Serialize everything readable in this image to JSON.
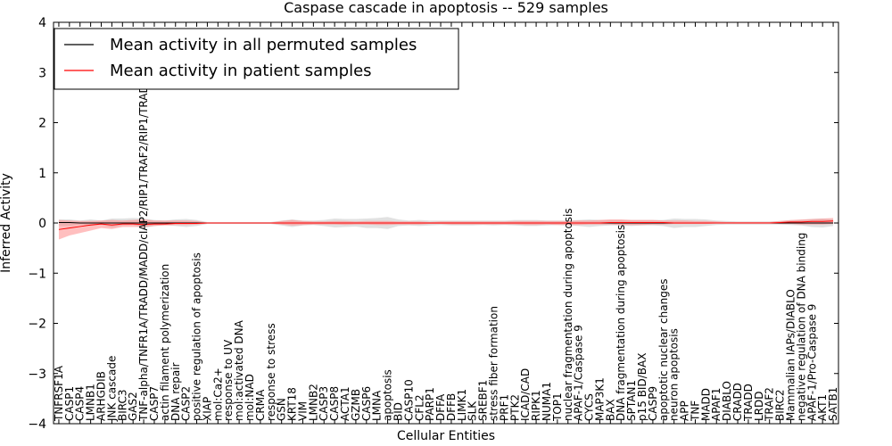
{
  "chart_data": {
    "type": "line",
    "title": "Caspase cascade in apoptosis -- 529 samples",
    "xlabel": "Cellular Entities",
    "ylabel": "Inferred Activity",
    "ylim": [
      -4,
      4
    ],
    "yticks": [
      4,
      3,
      2,
      1,
      0,
      -1,
      -2,
      -3,
      -4
    ],
    "ytick_labels": [
      "4",
      "3",
      "2",
      "1",
      "0",
      "−1",
      "−2",
      "−3",
      "−4"
    ],
    "legend_position": "top-left",
    "categories": [
      "TNFRSF1A",
      "CASP1",
      "CASP4",
      "LMNB1",
      "ARHGDIB",
      "JNK cascade",
      "BIRC3",
      "GAS2",
      "TNF-alpha/TNFR1A/TRADD/MADD/cIAP2/RIP1/TRAF2/RIP1/TRADD",
      "CASP7",
      "actin filament polymerization",
      "DNA repair",
      "CASP2",
      "positive regulation of apoptosis",
      "XIAP",
      "mol:Ca2+",
      "response to UV",
      "mol:activated DNA",
      "mol:NAD",
      "CRMA",
      "response to stress",
      "GSN",
      "KRT18",
      "VIM",
      "LMNB2",
      "CASP3",
      "CASP8",
      "ACTA1",
      "GZMB",
      "CASP6",
      "LMNA",
      "apoptosis",
      "BID",
      "CASP10",
      "CFL2",
      "PARP1",
      "DFFA",
      "DFFB",
      "LIMK1",
      "SLK",
      "SREBF1",
      "stress fiber formation",
      "PRF1",
      "PTK2",
      "ICAD/CAD",
      "RIPK1",
      "NUMA1",
      "TOP1",
      "nuclear fragmentation during apoptosis",
      "APAF-1/Caspase 9",
      "CYCS",
      "MAP3K1",
      "BAX",
      "DNA fragmentation during apoptosis",
      "SPTAN1",
      "p15 BID/BAX",
      "CASP9",
      "apoptotic nuclear changes",
      "neuron apoptosis",
      "APP",
      "TNF",
      "MADD",
      "APAF1",
      "DIABLO",
      "CRADD",
      "TRADD",
      "LRDD",
      "TRAF2",
      "BIRC2",
      "Mammalian IAPs/DIABLO",
      "negative regulation of DNA binding",
      "APAF-1/Pro-Caspase 9",
      "AKT1",
      "SATB1"
    ],
    "series": [
      {
        "name": "Mean activity in all permuted samples",
        "color": "#000000",
        "band_color": "#c8c8c8",
        "values": [
          0.01,
          0.01,
          0.0,
          0.0,
          0.0,
          0.0,
          0.0,
          0.0,
          0.0,
          0.0,
          0.0,
          0.0,
          0.0,
          0.0,
          0.0,
          0.0,
          0.0,
          0.0,
          0.0,
          0.0,
          0.0,
          0.0,
          0.0,
          0.0,
          0.0,
          0.0,
          0.0,
          0.0,
          0.0,
          0.0,
          0.0,
          0.0,
          0.0,
          0.0,
          0.0,
          0.0,
          0.0,
          0.0,
          0.0,
          0.0,
          0.0,
          0.0,
          0.0,
          0.0,
          0.0,
          0.0,
          0.0,
          0.0,
          0.0,
          0.0,
          0.0,
          0.0,
          0.0,
          0.0,
          0.0,
          0.0,
          0.0,
          0.0,
          0.0,
          0.0,
          0.0,
          0.0,
          0.0,
          0.0,
          0.0,
          0.0,
          0.0,
          0.0,
          0.0,
          0.0,
          0.0,
          0.0,
          0.0,
          0.0
        ],
        "lower": [
          -0.06,
          -0.06,
          -0.03,
          -0.06,
          -0.03,
          -0.09,
          -0.05,
          -0.04,
          -0.1,
          -0.06,
          -0.04,
          -0.06,
          -0.08,
          -0.06,
          -0.02,
          -0.02,
          -0.02,
          -0.02,
          -0.02,
          -0.02,
          -0.02,
          -0.05,
          -0.08,
          -0.05,
          -0.04,
          -0.06,
          -0.09,
          -0.08,
          -0.07,
          -0.1,
          -0.1,
          -0.12,
          -0.06,
          -0.05,
          -0.06,
          -0.05,
          -0.04,
          -0.05,
          -0.05,
          -0.05,
          -0.04,
          -0.05,
          -0.04,
          -0.05,
          -0.06,
          -0.06,
          -0.05,
          -0.04,
          -0.05,
          -0.06,
          -0.08,
          -0.06,
          -0.05,
          -0.05,
          -0.06,
          -0.05,
          -0.05,
          -0.06,
          -0.1,
          -0.08,
          -0.08,
          -0.06,
          -0.04,
          -0.03,
          -0.03,
          -0.03,
          -0.03,
          -0.03,
          -0.03,
          -0.04,
          -0.05,
          -0.08,
          -0.09,
          -0.06
        ],
        "upper": [
          0.07,
          0.07,
          0.05,
          0.07,
          0.05,
          0.09,
          0.09,
          0.1,
          0.09,
          0.06,
          0.05,
          0.07,
          0.08,
          0.06,
          0.02,
          0.02,
          0.02,
          0.02,
          0.02,
          0.02,
          0.02,
          0.05,
          0.07,
          0.05,
          0.05,
          0.06,
          0.09,
          0.08,
          0.08,
          0.09,
          0.1,
          0.12,
          0.07,
          0.05,
          0.06,
          0.05,
          0.05,
          0.05,
          0.05,
          0.05,
          0.05,
          0.05,
          0.05,
          0.06,
          0.06,
          0.06,
          0.05,
          0.05,
          0.05,
          0.06,
          0.07,
          0.06,
          0.06,
          0.06,
          0.06,
          0.06,
          0.06,
          0.06,
          0.09,
          0.08,
          0.08,
          0.07,
          0.05,
          0.04,
          0.03,
          0.03,
          0.03,
          0.03,
          0.04,
          0.05,
          0.06,
          0.08,
          0.09,
          0.07
        ]
      },
      {
        "name": "Mean activity in patient samples",
        "color": "#ff0000",
        "band_color": "#ff8080",
        "values": [
          -0.13,
          -0.1,
          -0.07,
          -0.04,
          -0.02,
          -0.04,
          -0.02,
          -0.02,
          -0.03,
          -0.02,
          -0.02,
          -0.01,
          -0.01,
          -0.01,
          0.0,
          0.0,
          0.0,
          0.0,
          0.0,
          0.0,
          0.0,
          0.0,
          0.0,
          0.0,
          0.0,
          0.0,
          0.0,
          0.0,
          0.0,
          0.0,
          0.0,
          0.0,
          0.0,
          0.0,
          0.0,
          0.0,
          0.0,
          0.0,
          0.0,
          0.0,
          0.0,
          0.0,
          0.0,
          0.0,
          0.0,
          0.0,
          0.0,
          0.0,
          0.0,
          0.0,
          0.0,
          0.0,
          0.01,
          0.01,
          0.01,
          0.01,
          0.01,
          0.01,
          0.0,
          0.0,
          0.0,
          0.0,
          0.0,
          0.0,
          0.0,
          0.0,
          0.0,
          0.0,
          0.01,
          0.02,
          0.02,
          0.03,
          0.03,
          0.04
        ],
        "lower": [
          -0.33,
          -0.25,
          -0.2,
          -0.15,
          -0.1,
          -0.12,
          -0.08,
          -0.08,
          -0.08,
          -0.06,
          -0.05,
          -0.04,
          -0.04,
          -0.03,
          -0.01,
          -0.01,
          -0.01,
          -0.01,
          -0.01,
          -0.01,
          -0.01,
          -0.03,
          -0.05,
          -0.04,
          -0.03,
          -0.03,
          -0.03,
          -0.04,
          -0.03,
          -0.03,
          -0.04,
          -0.04,
          -0.03,
          -0.03,
          -0.03,
          -0.02,
          -0.02,
          -0.03,
          -0.03,
          -0.03,
          -0.03,
          -0.03,
          -0.03,
          -0.03,
          -0.04,
          -0.04,
          -0.03,
          -0.04,
          -0.04,
          -0.04,
          -0.03,
          -0.03,
          -0.03,
          -0.04,
          -0.04,
          -0.04,
          -0.03,
          -0.03,
          -0.02,
          -0.02,
          -0.02,
          -0.02,
          -0.01,
          -0.01,
          -0.01,
          -0.01,
          -0.01,
          -0.01,
          -0.02,
          -0.02,
          -0.03,
          -0.03,
          -0.03,
          -0.02
        ],
        "upper": [
          0.06,
          0.05,
          0.04,
          0.04,
          0.05,
          0.06,
          0.05,
          0.06,
          0.07,
          0.05,
          0.05,
          0.05,
          0.05,
          0.04,
          0.01,
          0.01,
          0.01,
          0.01,
          0.01,
          0.01,
          0.01,
          0.04,
          0.06,
          0.04,
          0.03,
          0.03,
          0.04,
          0.04,
          0.03,
          0.04,
          0.04,
          0.04,
          0.03,
          0.03,
          0.03,
          0.02,
          0.03,
          0.03,
          0.03,
          0.03,
          0.03,
          0.03,
          0.03,
          0.04,
          0.04,
          0.04,
          0.04,
          0.04,
          0.04,
          0.05,
          0.05,
          0.06,
          0.07,
          0.07,
          0.06,
          0.06,
          0.06,
          0.05,
          0.05,
          0.05,
          0.04,
          0.04,
          0.03,
          0.02,
          0.02,
          0.02,
          0.02,
          0.02,
          0.04,
          0.06,
          0.07,
          0.08,
          0.09,
          0.1
        ]
      }
    ]
  }
}
